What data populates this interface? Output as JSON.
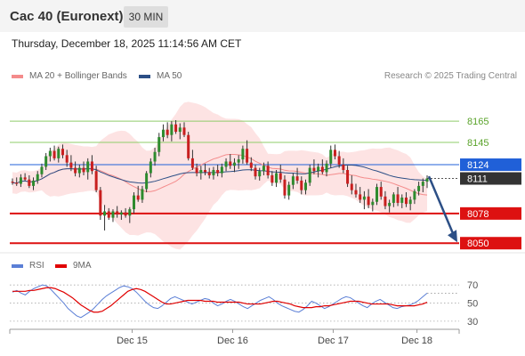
{
  "header": {
    "title": "Cac 40 (Euronext)",
    "timeframe": "30 MIN"
  },
  "timestamp": "Thursday, December 18, 2025 11:14:56 AM CET",
  "legend": {
    "bollinger": {
      "label": "MA 20 + Bollinger Bands",
      "color": "#f48b8b"
    },
    "ma50": {
      "label": "MA 50",
      "color": "#2c4f86"
    }
  },
  "credit": "Research © 2025 Trading Central",
  "rsi_legend": {
    "rsi": {
      "label": "RSI",
      "color": "#5b7fd6"
    },
    "ma9": {
      "label": "9MA",
      "color": "#e00000"
    }
  },
  "chart_data": [
    {
      "type": "candlestick",
      "x_labels": [
        "Dec 15",
        "Dec 16",
        "Dec 17",
        "Dec 18"
      ],
      "ylim": [
        8046,
        8192
      ],
      "levels": [
        {
          "value": 8165,
          "label": "8165",
          "kind": "target",
          "color": "#8fcc6a"
        },
        {
          "value": 8145,
          "label": "8145",
          "kind": "target",
          "color": "#8fcc6a"
        },
        {
          "value": 8124,
          "label": "8124",
          "kind": "pivot",
          "color": "#2060d8"
        },
        {
          "value": 8111,
          "label": "8111",
          "kind": "last",
          "color": "#333333"
        },
        {
          "value": 8078,
          "label": "8078",
          "kind": "support",
          "color": "#dd1111"
        },
        {
          "value": 8050,
          "label": "8050",
          "kind": "support",
          "color": "#dd1111"
        }
      ],
      "forecast_arrow": {
        "from": 8113,
        "to": 8050,
        "direction": "down"
      },
      "ohlc": [
        [
          8108,
          8111,
          8105,
          8107
        ],
        [
          8107,
          8112,
          8104,
          8106
        ],
        [
          8106,
          8115,
          8103,
          8112
        ],
        [
          8112,
          8116,
          8109,
          8110
        ],
        [
          8110,
          8114,
          8102,
          8104
        ],
        [
          8104,
          8112,
          8100,
          8109
        ],
        [
          8109,
          8118,
          8106,
          8115
        ],
        [
          8115,
          8125,
          8112,
          8122
        ],
        [
          8122,
          8135,
          8119,
          8132
        ],
        [
          8132,
          8140,
          8127,
          8137
        ],
        [
          8137,
          8142,
          8128,
          8130
        ],
        [
          8130,
          8141,
          8126,
          8139
        ],
        [
          8139,
          8143,
          8130,
          8133
        ],
        [
          8133,
          8138,
          8122,
          8126
        ],
        [
          8126,
          8133,
          8118,
          8121
        ],
        [
          8121,
          8127,
          8113,
          8116
        ],
        [
          8116,
          8124,
          8112,
          8121
        ],
        [
          8121,
          8127,
          8114,
          8117
        ],
        [
          8117,
          8130,
          8110,
          8127
        ],
        [
          8127,
          8133,
          8115,
          8118
        ],
        [
          8118,
          8123,
          8098,
          8100
        ],
        [
          8100,
          8103,
          8072,
          8076
        ],
        [
          8076,
          8086,
          8062,
          8080
        ],
        [
          8080,
          8083,
          8072,
          8074
        ],
        [
          8074,
          8082,
          8070,
          8080
        ],
        [
          8080,
          8085,
          8074,
          8077
        ],
        [
          8077,
          8081,
          8072,
          8079
        ],
        [
          8079,
          8083,
          8074,
          8076
        ],
        [
          8076,
          8084,
          8069,
          8082
        ],
        [
          8082,
          8098,
          8078,
          8095
        ],
        [
          8095,
          8104,
          8089,
          8091
        ],
        [
          8091,
          8104,
          8088,
          8101
        ],
        [
          8101,
          8118,
          8098,
          8116
        ],
        [
          8116,
          8130,
          8112,
          8127
        ],
        [
          8127,
          8140,
          8123,
          8136
        ],
        [
          8136,
          8154,
          8132,
          8150
        ],
        [
          8150,
          8162,
          8146,
          8157
        ],
        [
          8157,
          8164,
          8149,
          8152
        ],
        [
          8152,
          8165,
          8146,
          8162
        ],
        [
          8162,
          8166,
          8153,
          8155
        ],
        [
          8155,
          8163,
          8148,
          8159
        ],
        [
          8159,
          8164,
          8150,
          8152
        ],
        [
          8152,
          8155,
          8128,
          8130
        ],
        [
          8130,
          8138,
          8119,
          8121
        ],
        [
          8121,
          8125,
          8113,
          8116
        ],
        [
          8116,
          8123,
          8110,
          8119
        ],
        [
          8119,
          8125,
          8114,
          8117
        ],
        [
          8117,
          8121,
          8111,
          8114
        ],
        [
          8114,
          8122,
          8110,
          8119
        ],
        [
          8119,
          8124,
          8113,
          8116
        ],
        [
          8116,
          8125,
          8112,
          8122
        ],
        [
          8122,
          8130,
          8118,
          8127
        ],
        [
          8127,
          8134,
          8120,
          8123
        ],
        [
          8123,
          8130,
          8117,
          8126
        ],
        [
          8126,
          8133,
          8120,
          8129
        ],
        [
          8129,
          8142,
          8125,
          8139
        ],
        [
          8139,
          8147,
          8124,
          8126
        ],
        [
          8126,
          8131,
          8118,
          8121
        ],
        [
          8121,
          8124,
          8110,
          8113
        ],
        [
          8113,
          8121,
          8109,
          8118
        ],
        [
          8118,
          8126,
          8114,
          8123
        ],
        [
          8123,
          8127,
          8111,
          8114
        ],
        [
          8114,
          8118,
          8104,
          8107
        ],
        [
          8107,
          8119,
          8103,
          8116
        ],
        [
          8116,
          8124,
          8107,
          8110
        ],
        [
          8110,
          8114,
          8092,
          8095
        ],
        [
          8095,
          8108,
          8091,
          8105
        ],
        [
          8105,
          8116,
          8101,
          8113
        ],
        [
          8113,
          8121,
          8106,
          8109
        ],
        [
          8109,
          8113,
          8096,
          8100
        ],
        [
          8100,
          8110,
          8096,
          8107
        ],
        [
          8107,
          8124,
          8104,
          8121
        ],
        [
          8121,
          8129,
          8115,
          8118
        ],
        [
          8118,
          8125,
          8112,
          8122
        ],
        [
          8122,
          8129,
          8115,
          8117
        ],
        [
          8117,
          8128,
          8113,
          8125
        ],
        [
          8125,
          8142,
          8121,
          8138
        ],
        [
          8138,
          8143,
          8129,
          8132
        ],
        [
          8132,
          8137,
          8121,
          8124
        ],
        [
          8124,
          8130,
          8116,
          8119
        ],
        [
          8119,
          8123,
          8103,
          8106
        ],
        [
          8106,
          8114,
          8096,
          8100
        ],
        [
          8100,
          8106,
          8093,
          8096
        ],
        [
          8096,
          8103,
          8088,
          8091
        ],
        [
          8091,
          8099,
          8082,
          8094
        ],
        [
          8094,
          8101,
          8083,
          8086
        ],
        [
          8086,
          8092,
          8080,
          8089
        ],
        [
          8089,
          8106,
          8086,
          8103
        ],
        [
          8103,
          8108,
          8091,
          8094
        ],
        [
          8094,
          8099,
          8082,
          8085
        ],
        [
          8085,
          8091,
          8079,
          8088
        ],
        [
          8088,
          8098,
          8084,
          8096
        ],
        [
          8096,
          8103,
          8085,
          8088
        ],
        [
          8088,
          8096,
          8083,
          8093
        ],
        [
          8093,
          8098,
          8084,
          8087
        ],
        [
          8087,
          8094,
          8081,
          8091
        ],
        [
          8091,
          8101,
          8087,
          8099
        ],
        [
          8099,
          8108,
          8095,
          8104
        ],
        [
          8104,
          8111,
          8098,
          8108
        ],
        [
          8108,
          8114,
          8102,
          8111
        ]
      ]
    },
    {
      "type": "line",
      "name": "RSI",
      "x_labels": [
        "Dec 15",
        "Dec 16",
        "Dec 17",
        "Dec 18"
      ],
      "y_ticks": [
        70,
        50,
        30
      ],
      "ylim": [
        25,
        80
      ],
      "series": [
        {
          "name": "RSI",
          "values": [
            62,
            64,
            61,
            59,
            63,
            66,
            68,
            70,
            69,
            65,
            60,
            55,
            50,
            44,
            40,
            36,
            34,
            37,
            40,
            44,
            49,
            54,
            58,
            61,
            64,
            67,
            69,
            68,
            66,
            62,
            57,
            52,
            48,
            45,
            44,
            47,
            51,
            55,
            57,
            55,
            53,
            51,
            49,
            51,
            53,
            55,
            54,
            50,
            47,
            49,
            52,
            54,
            52,
            49,
            46,
            44,
            47,
            50,
            53,
            55,
            57,
            54,
            50,
            47,
            45,
            43,
            41,
            40,
            43,
            47,
            52,
            50,
            47,
            44,
            46,
            49,
            52,
            55,
            57,
            56,
            53,
            50,
            47,
            45,
            49,
            52,
            54,
            51,
            48,
            45,
            44,
            46,
            47,
            48,
            50,
            53,
            57,
            61
          ]
        },
        {
          "name": "9MA",
          "values": [
            63,
            63,
            63,
            63,
            64,
            64,
            65,
            66,
            67,
            67,
            66,
            64,
            62,
            59,
            56,
            52,
            48,
            45,
            42,
            40,
            40,
            41,
            44,
            47,
            51,
            55,
            59,
            63,
            65,
            66,
            65,
            63,
            60,
            57,
            54,
            51,
            49,
            49,
            50,
            51,
            52,
            53,
            53,
            53,
            53,
            52,
            52,
            52,
            51,
            51,
            51,
            51,
            51,
            51,
            50,
            49,
            49,
            49,
            49,
            50,
            51,
            52,
            52,
            51,
            50,
            49,
            47,
            46,
            45,
            45,
            45,
            46,
            46,
            47,
            47,
            48,
            49,
            50,
            51,
            52,
            52,
            52,
            51,
            50,
            49,
            49,
            49,
            49,
            49,
            48,
            47,
            47,
            47,
            47,
            47,
            48,
            49,
            51
          ]
        }
      ]
    }
  ]
}
